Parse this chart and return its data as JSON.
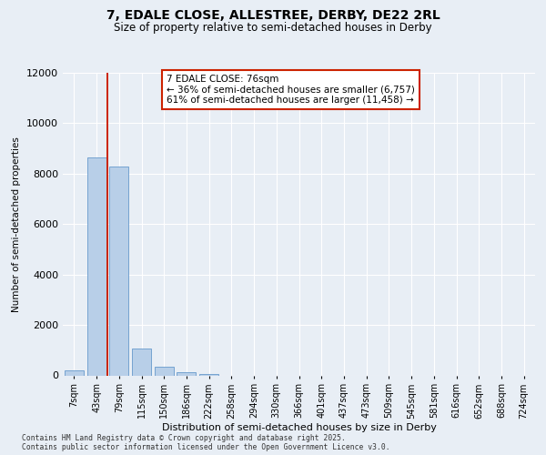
{
  "title_line1": "7, EDALE CLOSE, ALLESTREE, DERBY, DE22 2RL",
  "title_line2": "Size of property relative to semi-detached houses in Derby",
  "xlabel": "Distribution of semi-detached houses by size in Derby",
  "ylabel": "Number of semi-detached properties",
  "categories": [
    "7sqm",
    "43sqm",
    "79sqm",
    "115sqm",
    "150sqm",
    "186sqm",
    "222sqm",
    "258sqm",
    "294sqm",
    "330sqm",
    "366sqm",
    "401sqm",
    "437sqm",
    "473sqm",
    "509sqm",
    "545sqm",
    "581sqm",
    "616sqm",
    "652sqm",
    "688sqm",
    "724sqm"
  ],
  "values": [
    200,
    8650,
    8300,
    1050,
    330,
    130,
    50,
    0,
    0,
    0,
    0,
    0,
    0,
    0,
    0,
    0,
    0,
    0,
    0,
    0,
    0
  ],
  "bar_color": "#b8cfe8",
  "bar_edge_color": "#6699cc",
  "background_color": "#e8eef5",
  "grid_color": "#ffffff",
  "vline_idx": 2,
  "vline_color": "#cc2200",
  "annotation_title": "7 EDALE CLOSE: 76sqm",
  "annotation_line1": "← 36% of semi-detached houses are smaller (6,757)",
  "annotation_line2": "61% of semi-detached houses are larger (11,458) →",
  "annotation_box_color": "#ffffff",
  "annotation_box_edge": "#cc2200",
  "ylim": [
    0,
    12000
  ],
  "yticks": [
    0,
    2000,
    4000,
    6000,
    8000,
    10000,
    12000
  ],
  "footer_line1": "Contains HM Land Registry data © Crown copyright and database right 2025.",
  "footer_line2": "Contains public sector information licensed under the Open Government Licence v3.0."
}
